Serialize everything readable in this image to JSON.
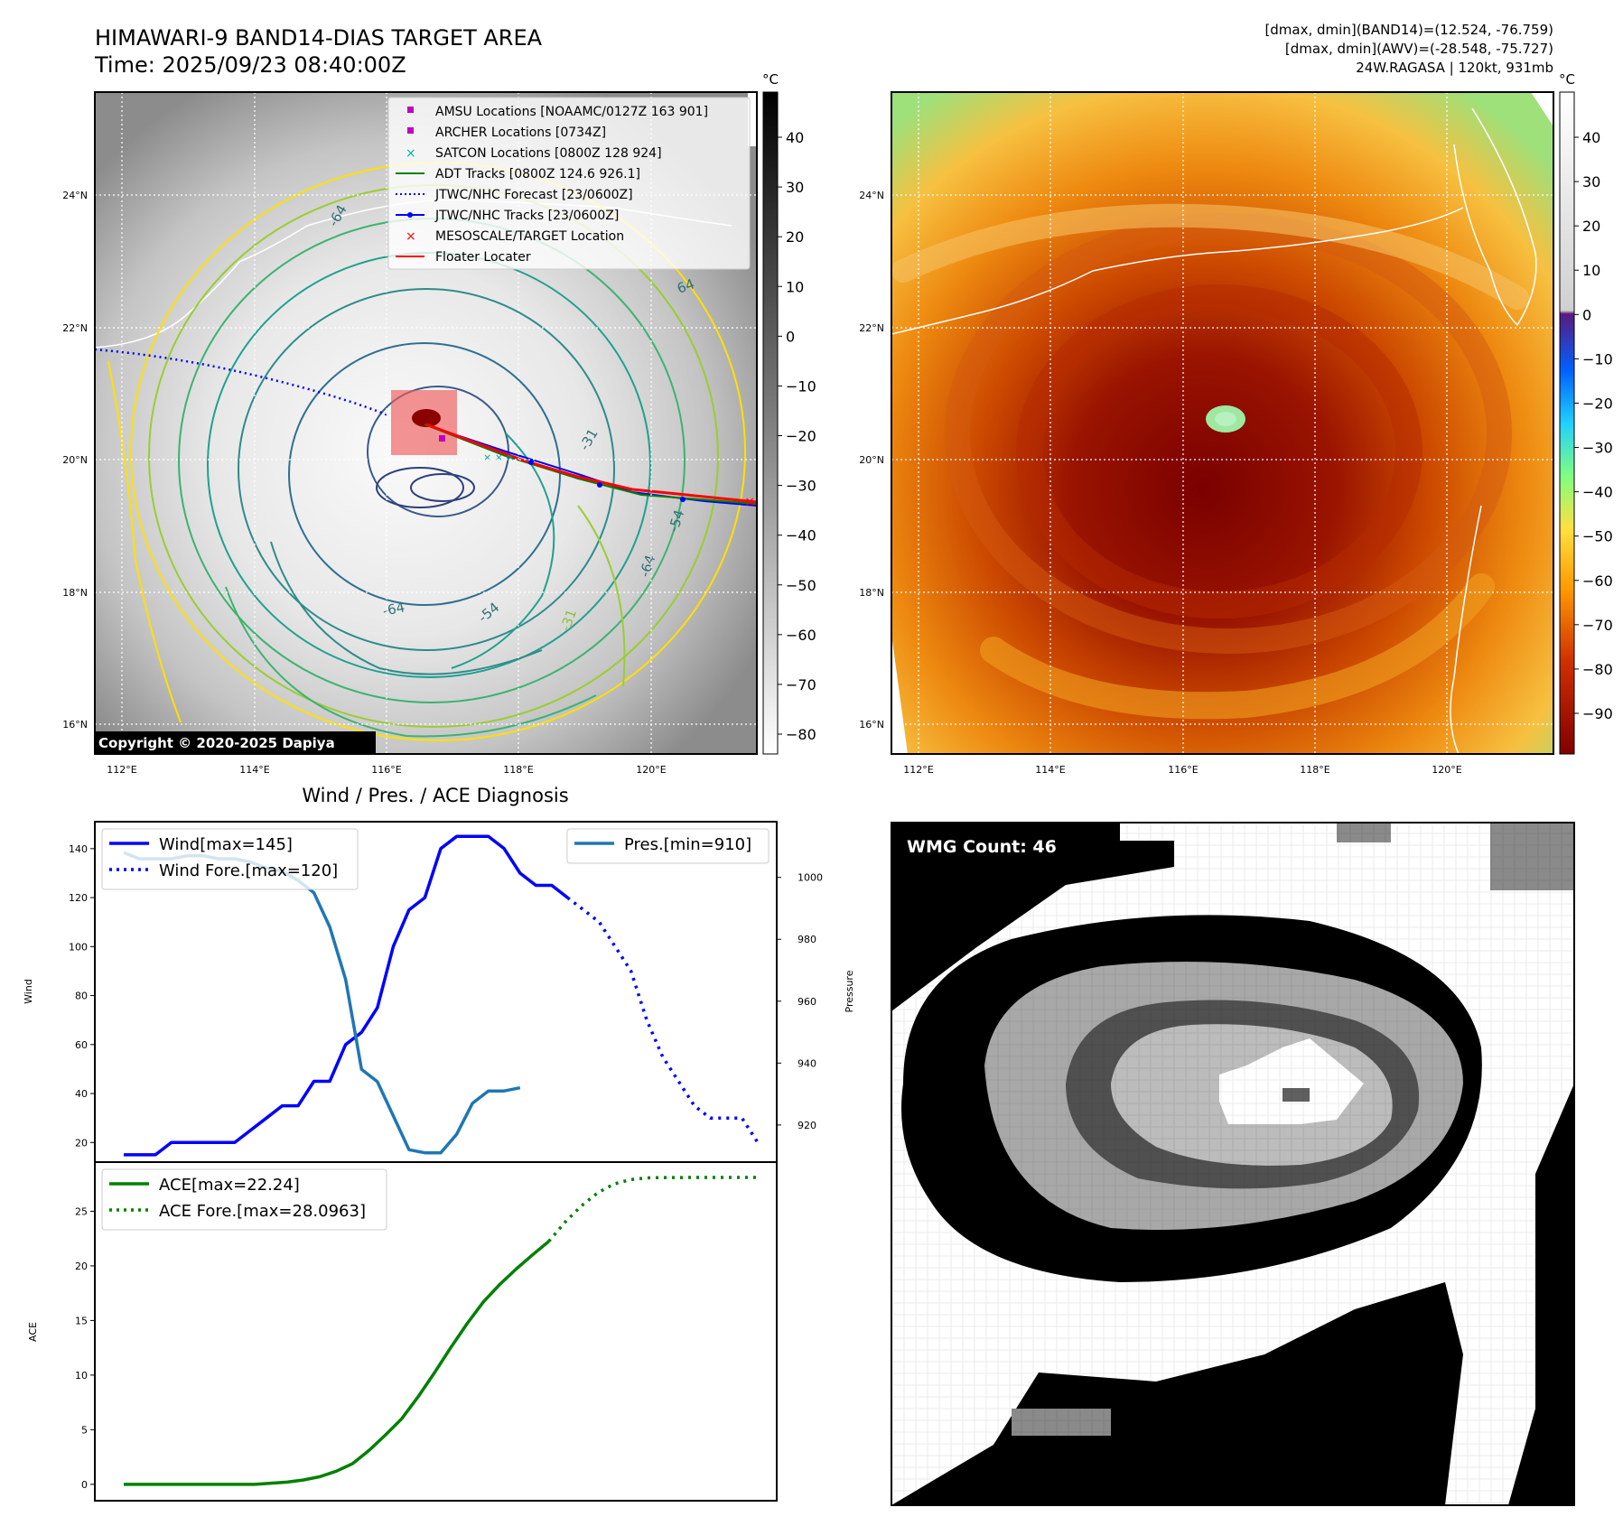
{
  "header": {
    "title_line1": "HIMAWARI-9 BAND14-DIAS TARGET AREA",
    "title_line2": "Time: 2025/09/23 08:40:00Z",
    "info_line1": "[dmax, dmin](BAND14)=(12.524, -76.759)",
    "info_line2": "[dmax, dmin](AWV)=(-28.548, -75.727)",
    "info_line3": "24W.RAGASA | 120kt, 931mb"
  },
  "map_axes": {
    "lon_labels": [
      "112°E",
      "114°E",
      "116°E",
      "118°E",
      "120°E"
    ],
    "lat_labels": [
      "24°N",
      "22°N",
      "20°N",
      "18°N",
      "16°N"
    ],
    "copyright": "Copyright © 2020-2025 Dapiya",
    "contour_labels": [
      "-64",
      "-54",
      "-31",
      "64",
      "-64",
      "-54",
      "-31",
      "-64"
    ]
  },
  "legend": {
    "items": [
      {
        "label": "AMSU Locations [NOAAMC/0127Z 163 901]",
        "marker": "square",
        "color": "#c000c0"
      },
      {
        "label": "ARCHER Locations [0734Z]",
        "marker": "square",
        "color": "#c000c0"
      },
      {
        "label": "SATCON Locations [0800Z 128 924]",
        "marker": "x",
        "color": "#00b0b0"
      },
      {
        "label": "ADT Tracks [0800Z 124.6 926.1]",
        "marker": "line",
        "color": "#008000"
      },
      {
        "label": "JTWC/NHC Forecast [23/0600Z]",
        "marker": "dotted",
        "color": "#0000ff"
      },
      {
        "label": "JTWC/NHC Tracks [23/0600Z]",
        "marker": "line-dot",
        "color": "#0000ff"
      },
      {
        "label": "MESOSCALE/TARGET Location",
        "marker": "x",
        "color": "#ff0000"
      },
      {
        "label": "Floater Locater",
        "marker": "line",
        "color": "#ff0000"
      }
    ]
  },
  "colorbar_band14": {
    "unit": "°C",
    "ticks": [
      "40",
      "30",
      "20",
      "10",
      "0",
      "−10",
      "−20",
      "−30",
      "−40",
      "−50",
      "−60",
      "−70",
      "−80"
    ]
  },
  "colorbar_awv": {
    "unit": "°C",
    "ticks": [
      "40",
      "30",
      "20",
      "10",
      "0",
      "−10",
      "−20",
      "−30",
      "−40",
      "−50",
      "−60",
      "−70",
      "−80",
      "−90"
    ]
  },
  "wmg": {
    "label": "WMG Count: 46"
  },
  "chart_data": [
    {
      "type": "line",
      "title": "Wind / Pres. / ACE Diagnosis",
      "ylabel": "Wind",
      "ylabel_right": "Pressure",
      "ylim": [
        12,
        151
      ],
      "ylim_right": [
        908,
        1018
      ],
      "y_ticks": [
        20,
        40,
        60,
        80,
        100,
        120,
        140
      ],
      "y_ticks_right": [
        920,
        940,
        960,
        980,
        1000
      ],
      "legend_left": [
        "Wind[max=145]",
        "Wind Fore.[max=120]"
      ],
      "legend_right": [
        "Pres.[min=910]"
      ],
      "series": [
        {
          "name": "Wind[max=145]",
          "color": "#0000ff",
          "style": "solid",
          "axis": "left",
          "values": [
            15,
            15,
            15,
            20,
            20,
            20,
            20,
            20,
            25,
            30,
            35,
            35,
            45,
            45,
            60,
            65,
            75,
            100,
            115,
            120,
            140,
            145,
            145,
            145,
            140,
            130,
            125,
            125,
            120
          ]
        },
        {
          "name": "Wind Fore.[max=120]",
          "color": "#0000ff",
          "style": "dotted",
          "axis": "left",
          "offset": 28,
          "values": [
            120,
            115,
            110,
            100,
            90,
            70,
            55,
            45,
            35,
            30,
            30,
            30,
            20
          ]
        },
        {
          "name": "Pres.[min=910]",
          "color": "#1f77b4",
          "style": "solid",
          "axis": "right",
          "values": [
            1008,
            1006,
            1006,
            1006,
            1007,
            1007,
            1006,
            1006,
            1005,
            1003,
            1002,
            999,
            995,
            984,
            967,
            938,
            934,
            923,
            912,
            911,
            911,
            917,
            927,
            931,
            931,
            932
          ]
        }
      ]
    },
    {
      "type": "line",
      "ylabel": "ACE",
      "ylim": [
        -1.5,
        29.5
      ],
      "y_ticks": [
        0,
        5,
        10,
        15,
        20,
        25
      ],
      "legend": [
        "ACE[max=22.24]",
        "ACE Fore.[max=28.0963]"
      ],
      "series": [
        {
          "name": "ACE[max=22.24]",
          "color": "#008000",
          "style": "solid",
          "values": [
            0,
            0,
            0,
            0,
            0,
            0,
            0,
            0,
            0,
            0.1,
            0.2,
            0.4,
            0.7,
            1.2,
            1.9,
            3.1,
            4.5,
            6.0,
            8.0,
            10.2,
            12.5,
            14.7,
            16.7,
            18.3,
            19.7,
            21.0,
            22.24
          ]
        },
        {
          "name": "ACE Fore.[max=28.0963]",
          "color": "#008000",
          "style": "dotted",
          "offset": 26,
          "values": [
            22.24,
            24.0,
            25.5,
            26.7,
            27.5,
            27.9,
            28.05,
            28.09,
            28.09,
            28.0963,
            28.0963,
            28.0963,
            28.0963,
            28.0963
          ]
        }
      ]
    }
  ]
}
